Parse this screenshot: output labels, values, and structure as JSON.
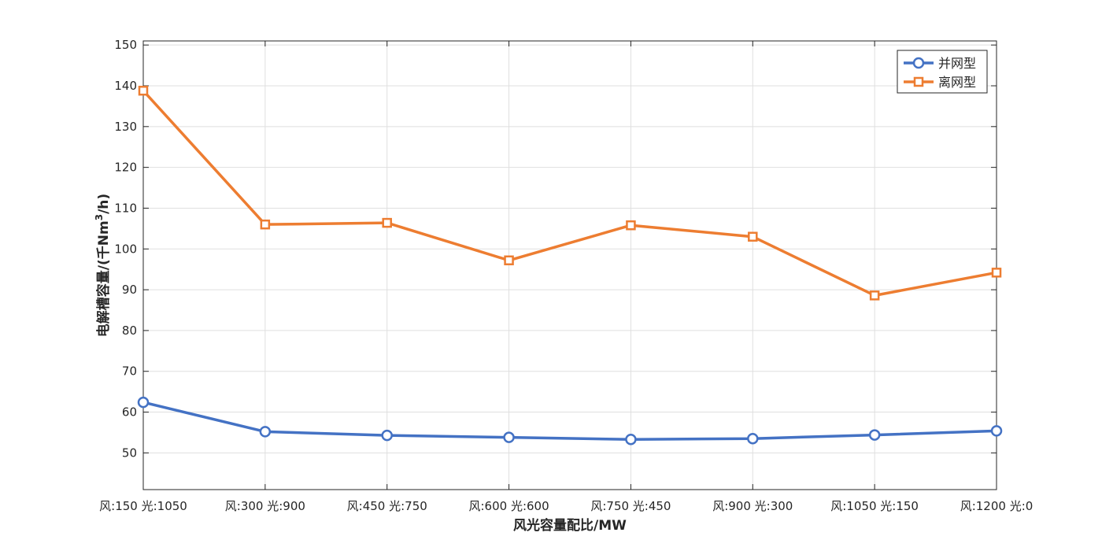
{
  "chart_data": {
    "type": "line",
    "categories": [
      "风:150 光:1050",
      "风:300 光:900",
      "风:450 光:750",
      "风:600 光:600",
      "风:750 光:450",
      "风:900 光:300",
      "风:1050 光:150",
      "风:1200 光:0"
    ],
    "series": [
      {
        "name": "并网型",
        "values": [
          62.4,
          55.2,
          54.3,
          53.8,
          53.3,
          53.5,
          54.4,
          55.4
        ],
        "color": "#4472C4",
        "marker": "circle"
      },
      {
        "name": "离网型",
        "values": [
          138.8,
          106.0,
          106.4,
          97.2,
          105.8,
          103.0,
          88.6,
          94.2
        ],
        "color": "#ED7D31",
        "marker": "square"
      }
    ],
    "xlabel": "风光容量配比/MW",
    "ylabel_main": "电解槽容量/(千Nm",
    "ylabel_sup": "3",
    "ylabel_tail": "/h)",
    "ylim": [
      41,
      151
    ],
    "yticks": [
      50,
      60,
      70,
      80,
      90,
      100,
      110,
      120,
      130,
      140,
      150
    ],
    "grid": true,
    "legend_position": "top-right"
  }
}
